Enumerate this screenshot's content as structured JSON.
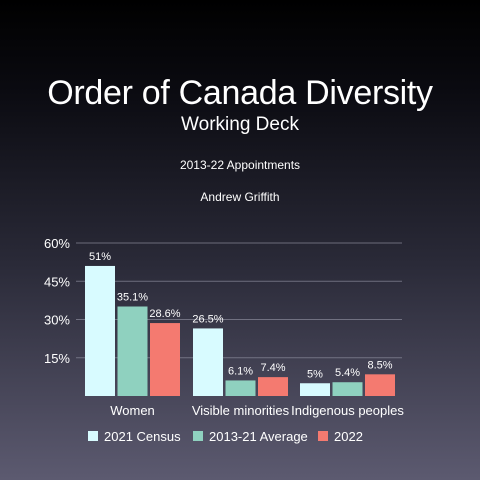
{
  "slide": {
    "title": "Order of Canada Diversity",
    "subtitle": "Working Deck",
    "period": "2013-22 Appointments",
    "author": "Andrew Griffith"
  },
  "colors": {
    "census": "#d8fbff",
    "average": "#8fd1bf",
    "y2022": "#f47a70",
    "grid": "#8a8a9a",
    "text": "#ffffff"
  },
  "chart_data": {
    "type": "bar",
    "categories": [
      "Women",
      "Visible minorities",
      "Indigenous peoples"
    ],
    "series": [
      {
        "name": "2021 Census",
        "values": [
          51,
          26.5,
          5
        ],
        "labels": [
          "51%",
          "26.5%",
          "5%"
        ]
      },
      {
        "name": "2013-21 Average",
        "values": [
          35.1,
          6.1,
          5.4
        ],
        "labels": [
          "35.1%",
          "6.1%",
          "5.4%"
        ]
      },
      {
        "name": "2022",
        "values": [
          28.6,
          7.4,
          8.5
        ],
        "labels": [
          "28.6%",
          "7.4%",
          "8.5%"
        ]
      }
    ],
    "y_ticks": [
      {
        "value": 15,
        "label": "15%"
      },
      {
        "value": 30,
        "label": "30%"
      },
      {
        "value": 45,
        "label": "45%"
      },
      {
        "value": 60,
        "label": "60%"
      }
    ],
    "ylim": [
      0,
      60
    ],
    "grid": true,
    "legend": "bottom"
  }
}
